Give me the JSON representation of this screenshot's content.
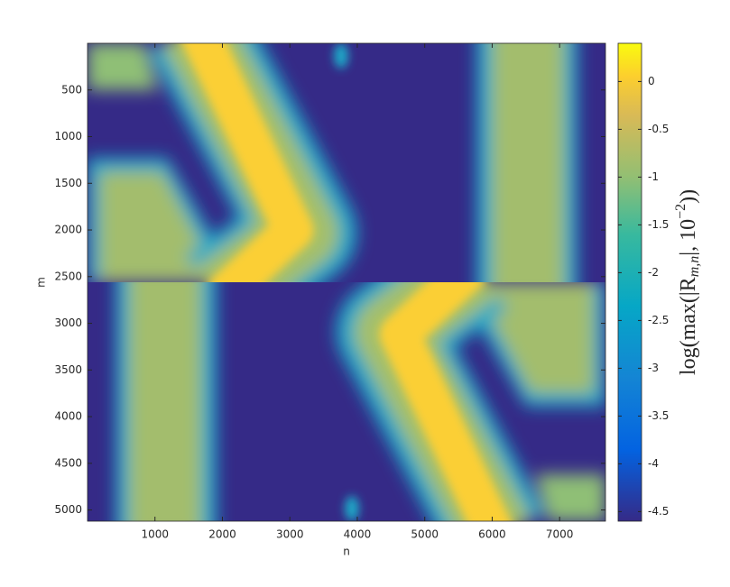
{
  "chart_data": {
    "type": "heatmap",
    "xlabel": "n",
    "ylabel": "m",
    "xlim": [
      0,
      7680
    ],
    "xticks": [
      1000,
      2000,
      3000,
      4000,
      5000,
      6000,
      7000
    ],
    "ylim": [
      0,
      5120
    ],
    "yticks": [
      500,
      1000,
      1500,
      2000,
      2500,
      3000,
      3500,
      4000,
      4500,
      5000
    ],
    "colorbar": {
      "clim": [
        -4.6,
        0.4
      ],
      "ticks": [
        0,
        -0.5,
        -1,
        -1.5,
        -2,
        -2.5,
        -3,
        -3.5,
        -4,
        -4.5
      ],
      "label_parts": [
        "log(max(|R",
        "m,n",
        "|, 10",
        "−2",
        "))"
      ]
    }
  }
}
